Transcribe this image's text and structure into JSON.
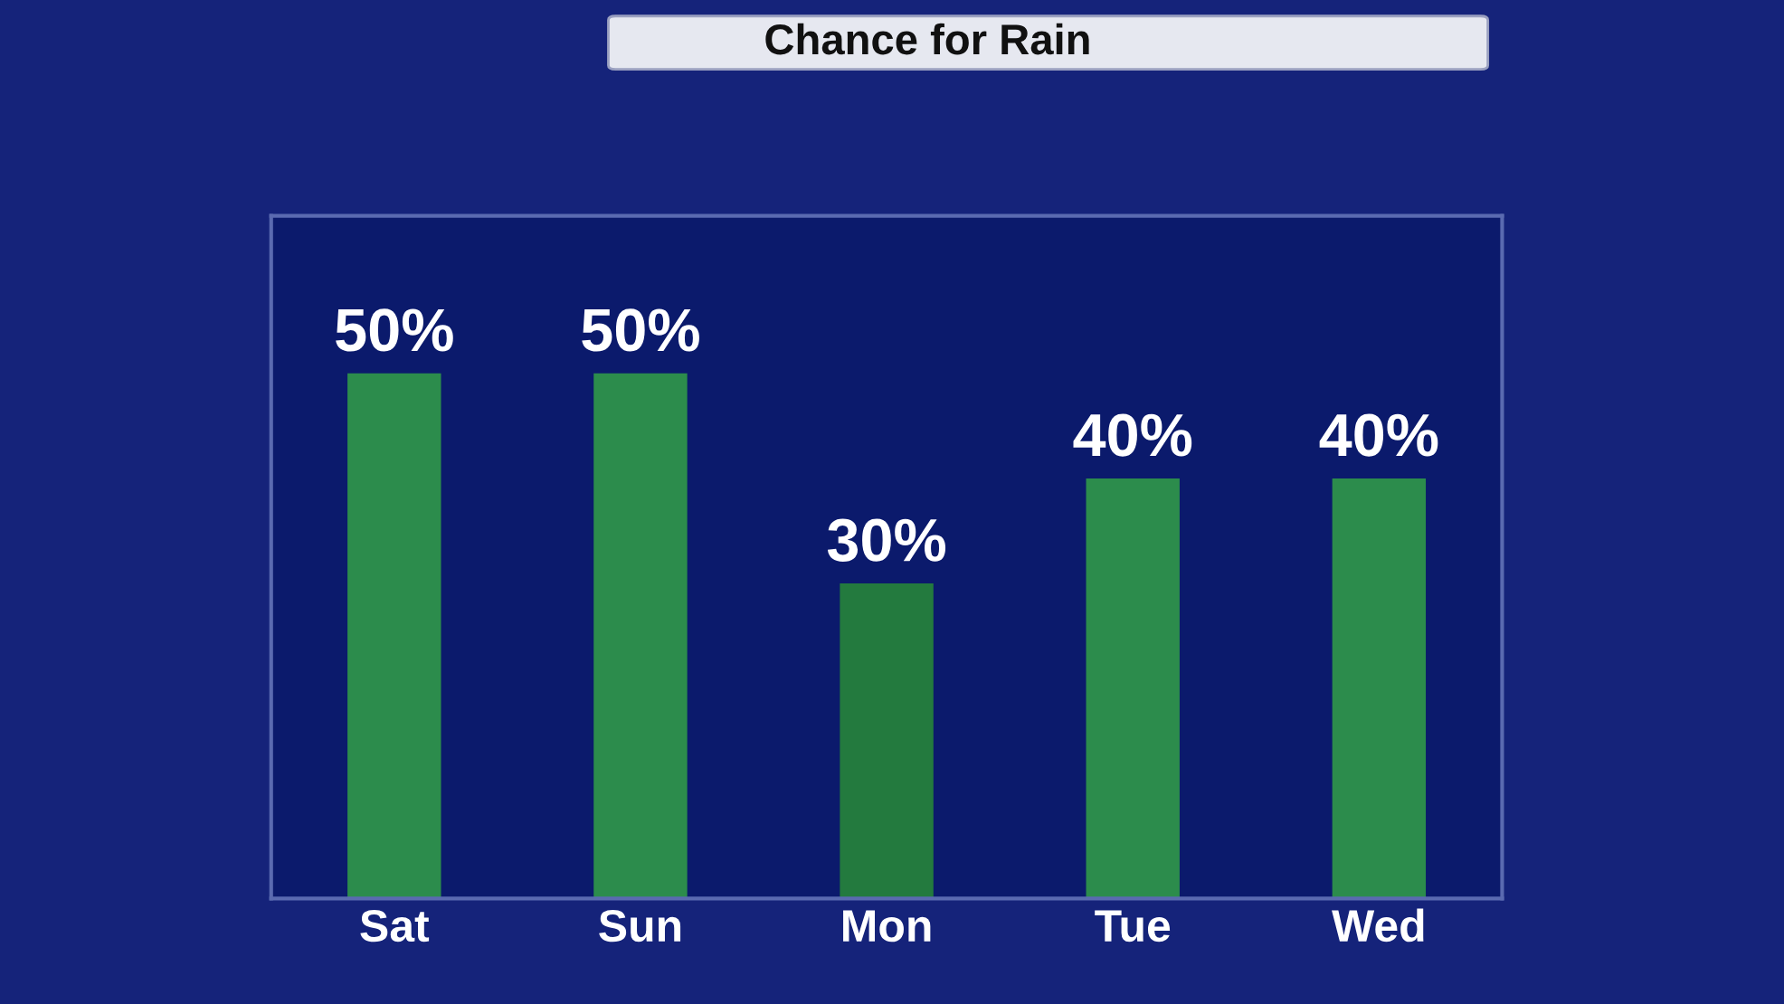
{
  "chart_data": {
    "type": "bar",
    "title": "Chance for Rain",
    "categories": [
      "Sat",
      "Sun",
      "Mon",
      "Tue",
      "Wed"
    ],
    "values": [
      50,
      50,
      30,
      40,
      40
    ],
    "colors": [
      "#2c8c4c",
      "#2c8c4c",
      "#237a3e",
      "#2c8c4c",
      "#2c8c4c"
    ],
    "value_labels": [
      "50%",
      "50%",
      "30%",
      "40%",
      "40%"
    ],
    "grid": false,
    "legend": false
  }
}
